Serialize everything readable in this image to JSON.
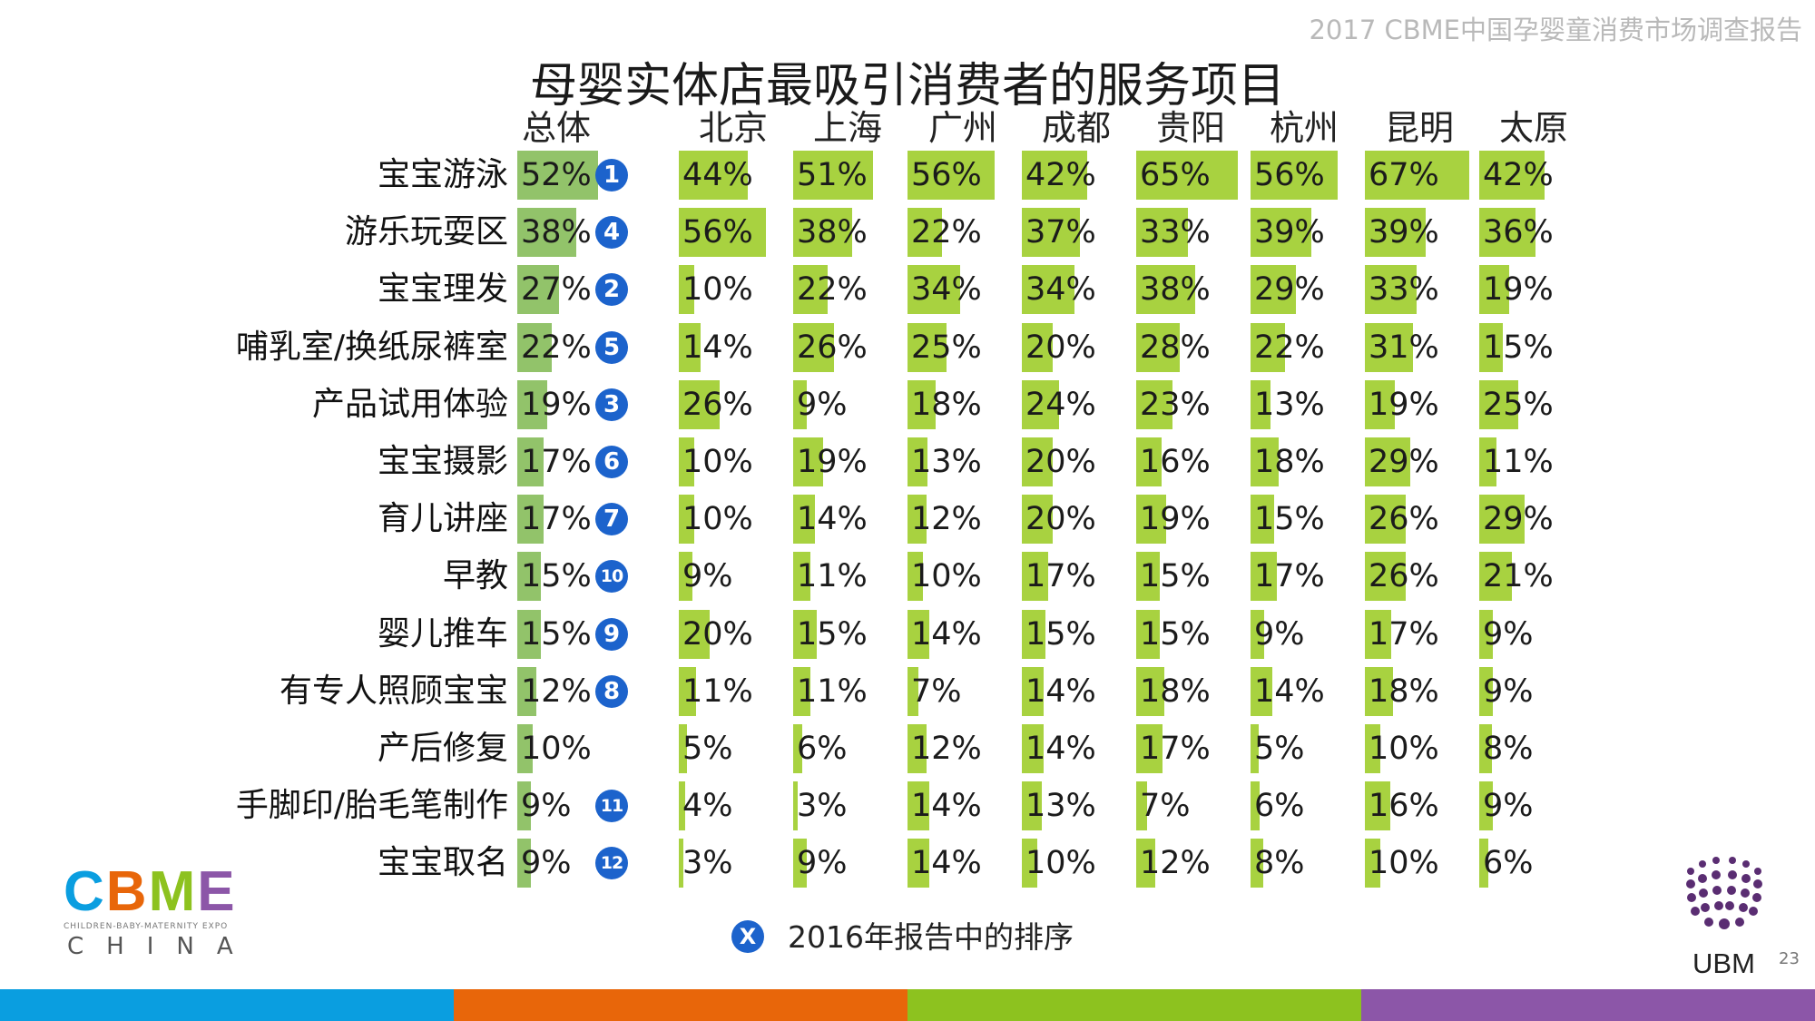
{
  "header": {
    "report_title": "2017 CBME中国孕婴童消费市场调查报告"
  },
  "chart_data": {
    "type": "bar",
    "title": "母婴实体店最吸引消费者的服务项目",
    "value_suffix": "%",
    "columns": [
      "总体",
      "北京",
      "上海",
      "广州",
      "成都",
      "贵阳",
      "杭州",
      "昆明",
      "太原"
    ],
    "categories": [
      "宝宝游泳",
      "游乐玩耍区",
      "宝宝理发",
      "哺乳室/换纸尿裤室",
      "产品试用体验",
      "宝宝摄影",
      "育儿讲座",
      "早教",
      "婴儿推车",
      "有专人照顾宝宝",
      "产后修复",
      "手脚印/胎毛笔制作",
      "宝宝取名"
    ],
    "series": [
      {
        "name": "总体",
        "values": [
          52,
          38,
          27,
          22,
          19,
          17,
          17,
          15,
          15,
          12,
          10,
          9,
          9
        ]
      },
      {
        "name": "北京",
        "values": [
          44,
          56,
          10,
          14,
          26,
          10,
          10,
          9,
          20,
          11,
          5,
          4,
          3
        ]
      },
      {
        "name": "上海",
        "values": [
          51,
          38,
          22,
          26,
          9,
          19,
          14,
          11,
          15,
          11,
          6,
          3,
          9
        ]
      },
      {
        "name": "广州",
        "values": [
          56,
          22,
          34,
          25,
          18,
          13,
          12,
          10,
          14,
          7,
          12,
          14,
          14
        ]
      },
      {
        "name": "成都",
        "values": [
          42,
          37,
          34,
          20,
          24,
          20,
          20,
          17,
          15,
          14,
          14,
          13,
          10
        ]
      },
      {
        "name": "贵阳",
        "values": [
          65,
          33,
          38,
          28,
          23,
          16,
          19,
          15,
          15,
          18,
          17,
          7,
          12
        ]
      },
      {
        "name": "杭州",
        "values": [
          56,
          39,
          29,
          22,
          13,
          18,
          15,
          17,
          9,
          14,
          5,
          6,
          8
        ]
      },
      {
        "name": "昆明",
        "values": [
          67,
          39,
          33,
          31,
          19,
          29,
          26,
          26,
          17,
          18,
          10,
          16,
          10
        ]
      },
      {
        "name": "太原",
        "values": [
          42,
          36,
          19,
          15,
          25,
          11,
          29,
          21,
          9,
          9,
          8,
          9,
          6
        ]
      }
    ],
    "rank_2016": [
      "1",
      "4",
      "2",
      "5",
      "3",
      "6",
      "7",
      "10",
      "9",
      "8",
      null,
      "11",
      "12"
    ]
  },
  "legend": {
    "badge": "X",
    "text": "2016年报告中的排序"
  },
  "logos": {
    "cbme_word": [
      "C",
      "B",
      "M",
      "E"
    ],
    "cbme_sub": "CHILDREN-BABY-MATERNITY EXPO",
    "cbme_china": "CHINA",
    "ubm": "UBM"
  },
  "page_number": "23",
  "colors": {
    "total_bar": "#92c36a",
    "city_bar": "#a8d240",
    "rank_badge": "#1c63cc",
    "stripe": [
      "#0a9ee0",
      "#e8660a",
      "#8dc21f",
      "#8c56a8"
    ],
    "cbme": [
      "#0a9ee0",
      "#e8660a",
      "#8dc21f",
      "#8c56a8"
    ]
  }
}
